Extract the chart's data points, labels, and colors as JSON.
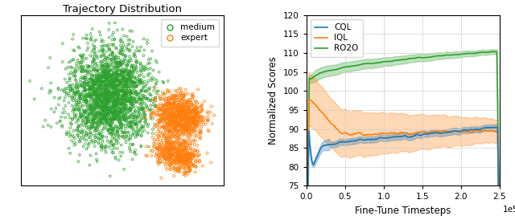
{
  "title_left": "Trajectory Distribution",
  "legend_medium_color": "#2ca02c",
  "legend_expert_color": "#ff7f0e",
  "scatter_medium_n": 2500,
  "scatter_expert_n": 1500,
  "line_colors": {
    "CQL": "#1f77b4",
    "IQL": "#ff7f0e",
    "RO2O": "#2ca02c"
  },
  "xlabel_right": "Fine-Tune Timesteps",
  "ylabel_right": "Normalized Scores",
  "ylim_right": [
    75,
    120
  ],
  "yticks_right": [
    75,
    80,
    85,
    90,
    95,
    100,
    105,
    110,
    115,
    120
  ],
  "xlim_right": [
    0,
    250000
  ],
  "xticks_right": [
    0,
    50000,
    100000,
    150000,
    200000,
    250000
  ],
  "xtick_labels_right": [
    "0.0",
    "0.5",
    "1.0",
    "1.5",
    "2.0",
    "2.5"
  ],
  "n_steps": 500,
  "alpha_fill": 0.3
}
